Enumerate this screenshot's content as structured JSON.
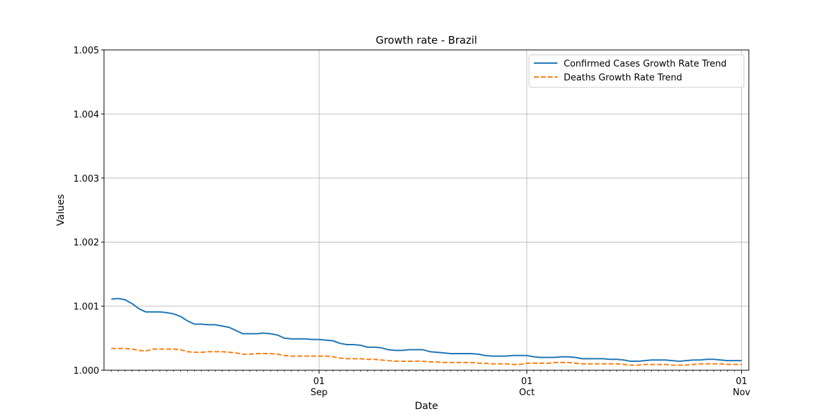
{
  "chart_data": {
    "type": "line",
    "title": "Growth rate - Brazil",
    "xlabel": "Date",
    "ylabel": "Values",
    "x_start": "2020-08-02",
    "x_end": "2020-11-01",
    "x_ticks": [
      {
        "date": "2020-09-01",
        "day": "01",
        "month": "Sep"
      },
      {
        "date": "2020-10-01",
        "day": "01",
        "month": "Oct"
      },
      {
        "date": "2020-11-01",
        "day": "01",
        "month": "Nov"
      }
    ],
    "ylim": [
      1.0,
      1.005
    ],
    "y_ticks": [
      1.0,
      1.001,
      1.002,
      1.003,
      1.004,
      1.005
    ],
    "y_tick_labels": [
      "1.000",
      "1.001",
      "1.002",
      "1.003",
      "1.004",
      "1.005"
    ],
    "grid": true,
    "legend_position": "top-right",
    "series": [
      {
        "name": "Confirmed Cases Growth Rate Trend",
        "color": "#1f77b4",
        "style": "solid",
        "points": [
          [
            "2020-08-02",
            1.00111
          ],
          [
            "2020-08-03",
            1.00112
          ],
          [
            "2020-08-04",
            1.0011
          ],
          [
            "2020-08-05",
            1.00104
          ],
          [
            "2020-08-06",
            1.00096
          ],
          [
            "2020-08-07",
            1.00091
          ],
          [
            "2020-08-08",
            1.00091
          ],
          [
            "2020-08-09",
            1.00091
          ],
          [
            "2020-08-10",
            1.0009
          ],
          [
            "2020-08-11",
            1.00088
          ],
          [
            "2020-08-12",
            1.00084
          ],
          [
            "2020-08-13",
            1.00077
          ],
          [
            "2020-08-14",
            1.00072
          ],
          [
            "2020-08-15",
            1.00072
          ],
          [
            "2020-08-16",
            1.00071
          ],
          [
            "2020-08-17",
            1.00071
          ],
          [
            "2020-08-18",
            1.00069
          ],
          [
            "2020-08-19",
            1.00067
          ],
          [
            "2020-08-20",
            1.00062
          ],
          [
            "2020-08-21",
            1.00057
          ],
          [
            "2020-08-22",
            1.00057
          ],
          [
            "2020-08-23",
            1.00057
          ],
          [
            "2020-08-24",
            1.00058
          ],
          [
            "2020-08-25",
            1.00057
          ],
          [
            "2020-08-26",
            1.00055
          ],
          [
            "2020-08-27",
            1.0005
          ],
          [
            "2020-08-28",
            1.00049
          ],
          [
            "2020-08-29",
            1.00049
          ],
          [
            "2020-08-30",
            1.00049
          ],
          [
            "2020-08-31",
            1.00048
          ],
          [
            "2020-09-01",
            1.00048
          ],
          [
            "2020-09-02",
            1.00047
          ],
          [
            "2020-09-03",
            1.00046
          ],
          [
            "2020-09-04",
            1.00042
          ],
          [
            "2020-09-05",
            1.0004
          ],
          [
            "2020-09-06",
            1.0004
          ],
          [
            "2020-09-07",
            1.00039
          ],
          [
            "2020-09-08",
            1.00036
          ],
          [
            "2020-09-09",
            1.00036
          ],
          [
            "2020-09-10",
            1.00035
          ],
          [
            "2020-09-11",
            1.00032
          ],
          [
            "2020-09-12",
            1.00031
          ],
          [
            "2020-09-13",
            1.00031
          ],
          [
            "2020-09-14",
            1.00032
          ],
          [
            "2020-09-15",
            1.00032
          ],
          [
            "2020-09-16",
            1.00032
          ],
          [
            "2020-09-17",
            1.00029
          ],
          [
            "2020-09-18",
            1.00028
          ],
          [
            "2020-09-19",
            1.00027
          ],
          [
            "2020-09-20",
            1.00026
          ],
          [
            "2020-09-21",
            1.00026
          ],
          [
            "2020-09-22",
            1.00026
          ],
          [
            "2020-09-23",
            1.00026
          ],
          [
            "2020-09-24",
            1.00025
          ],
          [
            "2020-09-25",
            1.00023
          ],
          [
            "2020-09-26",
            1.00022
          ],
          [
            "2020-09-27",
            1.00022
          ],
          [
            "2020-09-28",
            1.00022
          ],
          [
            "2020-09-29",
            1.00023
          ],
          [
            "2020-09-30",
            1.00023
          ],
          [
            "2020-10-01",
            1.00023
          ],
          [
            "2020-10-02",
            1.00021
          ],
          [
            "2020-10-03",
            1.0002
          ],
          [
            "2020-10-04",
            1.0002
          ],
          [
            "2020-10-05",
            1.0002
          ],
          [
            "2020-10-06",
            1.00021
          ],
          [
            "2020-10-07",
            1.00021
          ],
          [
            "2020-10-08",
            1.0002
          ],
          [
            "2020-10-09",
            1.00018
          ],
          [
            "2020-10-10",
            1.00018
          ],
          [
            "2020-10-11",
            1.00018
          ],
          [
            "2020-10-12",
            1.00018
          ],
          [
            "2020-10-13",
            1.00017
          ],
          [
            "2020-10-14",
            1.00017
          ],
          [
            "2020-10-15",
            1.00016
          ],
          [
            "2020-10-16",
            1.00014
          ],
          [
            "2020-10-17",
            1.00014
          ],
          [
            "2020-10-18",
            1.00015
          ],
          [
            "2020-10-19",
            1.00016
          ],
          [
            "2020-10-20",
            1.00016
          ],
          [
            "2020-10-21",
            1.00016
          ],
          [
            "2020-10-22",
            1.00015
          ],
          [
            "2020-10-23",
            1.00014
          ],
          [
            "2020-10-24",
            1.00015
          ],
          [
            "2020-10-25",
            1.00016
          ],
          [
            "2020-10-26",
            1.00016
          ],
          [
            "2020-10-27",
            1.00017
          ],
          [
            "2020-10-28",
            1.00017
          ],
          [
            "2020-10-29",
            1.00016
          ],
          [
            "2020-10-30",
            1.00015
          ],
          [
            "2020-10-31",
            1.00015
          ],
          [
            "2020-11-01",
            1.00015
          ]
        ]
      },
      {
        "name": "Deaths Growth Rate Trend",
        "color": "#ff7f0e",
        "style": "dashed",
        "points": [
          [
            "2020-08-02",
            1.00034
          ],
          [
            "2020-08-03",
            1.00034
          ],
          [
            "2020-08-04",
            1.00034
          ],
          [
            "2020-08-05",
            1.00033
          ],
          [
            "2020-08-06",
            1.00031
          ],
          [
            "2020-08-07",
            1.0003
          ],
          [
            "2020-08-08",
            1.00033
          ],
          [
            "2020-08-09",
            1.00033
          ],
          [
            "2020-08-10",
            1.00033
          ],
          [
            "2020-08-11",
            1.00033
          ],
          [
            "2020-08-12",
            1.00032
          ],
          [
            "2020-08-13",
            1.00029
          ],
          [
            "2020-08-14",
            1.00028
          ],
          [
            "2020-08-15",
            1.00028
          ],
          [
            "2020-08-16",
            1.00029
          ],
          [
            "2020-08-17",
            1.00029
          ],
          [
            "2020-08-18",
            1.00029
          ],
          [
            "2020-08-19",
            1.00028
          ],
          [
            "2020-08-20",
            1.00027
          ],
          [
            "2020-08-21",
            1.00025
          ],
          [
            "2020-08-22",
            1.00025
          ],
          [
            "2020-08-23",
            1.00026
          ],
          [
            "2020-08-24",
            1.00026
          ],
          [
            "2020-08-25",
            1.00026
          ],
          [
            "2020-08-26",
            1.00025
          ],
          [
            "2020-08-27",
            1.00023
          ],
          [
            "2020-08-28",
            1.00022
          ],
          [
            "2020-08-29",
            1.00022
          ],
          [
            "2020-08-30",
            1.00022
          ],
          [
            "2020-08-31",
            1.00022
          ],
          [
            "2020-09-01",
            1.00022
          ],
          [
            "2020-09-02",
            1.00022
          ],
          [
            "2020-09-03",
            1.00021
          ],
          [
            "2020-09-04",
            1.00019
          ],
          [
            "2020-09-05",
            1.00018
          ],
          [
            "2020-09-06",
            1.00018
          ],
          [
            "2020-09-07",
            1.00018
          ],
          [
            "2020-09-08",
            1.00017
          ],
          [
            "2020-09-09",
            1.00017
          ],
          [
            "2020-09-10",
            1.00016
          ],
          [
            "2020-09-11",
            1.00015
          ],
          [
            "2020-09-12",
            1.00014
          ],
          [
            "2020-09-13",
            1.00014
          ],
          [
            "2020-09-14",
            1.00014
          ],
          [
            "2020-09-15",
            1.00014
          ],
          [
            "2020-09-16",
            1.00014
          ],
          [
            "2020-09-17",
            1.00013
          ],
          [
            "2020-09-18",
            1.00013
          ],
          [
            "2020-09-19",
            1.00012
          ],
          [
            "2020-09-20",
            1.00012
          ],
          [
            "2020-09-21",
            1.00012
          ],
          [
            "2020-09-22",
            1.00012
          ],
          [
            "2020-09-23",
            1.00012
          ],
          [
            "2020-09-24",
            1.00011
          ],
          [
            "2020-09-25",
            1.00011
          ],
          [
            "2020-09-26",
            1.0001
          ],
          [
            "2020-09-27",
            1.0001
          ],
          [
            "2020-09-28",
            1.0001
          ],
          [
            "2020-09-29",
            1.00009
          ],
          [
            "2020-09-30",
            1.00009
          ],
          [
            "2020-10-01",
            1.00011
          ],
          [
            "2020-10-02",
            1.00011
          ],
          [
            "2020-10-03",
            1.00011
          ],
          [
            "2020-10-04",
            1.00011
          ],
          [
            "2020-10-05",
            1.00012
          ],
          [
            "2020-10-06",
            1.00012
          ],
          [
            "2020-10-07",
            1.00012
          ],
          [
            "2020-10-08",
            1.00011
          ],
          [
            "2020-10-09",
            1.0001
          ],
          [
            "2020-10-10",
            1.0001
          ],
          [
            "2020-10-11",
            1.0001
          ],
          [
            "2020-10-12",
            1.0001
          ],
          [
            "2020-10-13",
            1.0001
          ],
          [
            "2020-10-14",
            1.0001
          ],
          [
            "2020-10-15",
            1.00009
          ],
          [
            "2020-10-16",
            1.00008
          ],
          [
            "2020-10-17",
            1.00008
          ],
          [
            "2020-10-18",
            1.00009
          ],
          [
            "2020-10-19",
            1.00009
          ],
          [
            "2020-10-20",
            1.00009
          ],
          [
            "2020-10-21",
            1.00009
          ],
          [
            "2020-10-22",
            1.00008
          ],
          [
            "2020-10-23",
            1.00008
          ],
          [
            "2020-10-24",
            1.00008
          ],
          [
            "2020-10-25",
            1.00009
          ],
          [
            "2020-10-26",
            1.0001
          ],
          [
            "2020-10-27",
            1.0001
          ],
          [
            "2020-10-28",
            1.0001
          ],
          [
            "2020-10-29",
            1.0001
          ],
          [
            "2020-10-30",
            1.00009
          ],
          [
            "2020-10-31",
            1.00009
          ],
          [
            "2020-11-01",
            1.00009
          ]
        ]
      }
    ]
  }
}
